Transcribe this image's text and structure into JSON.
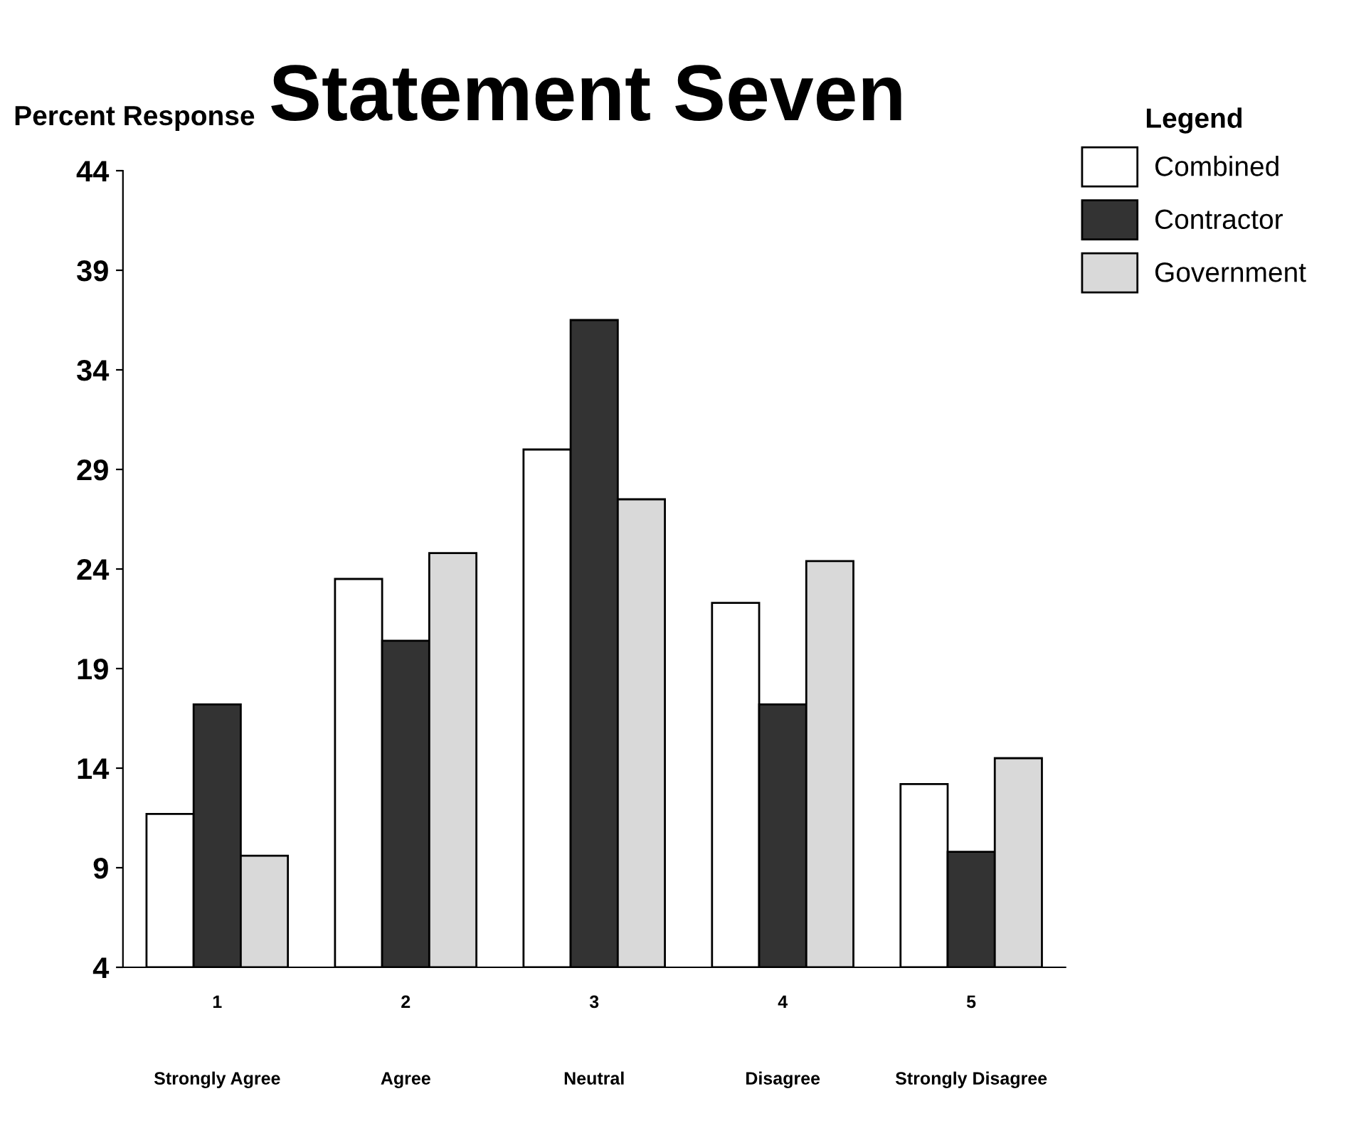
{
  "chart_data": {
    "type": "bar",
    "title": "Statement Seven",
    "ylabel": "Percent Response",
    "legend_title": "Legend",
    "categories": [
      "1\n\n\n\nStrongly Agree",
      "2\n\n\n\nAgree",
      "3\n\n\n\nNeutral",
      "4\n\n\n\nDisagree",
      "5\n\n\n\nStrongly Disagree"
    ],
    "series": [
      {
        "name": "Combined",
        "color": "#ffffff",
        "values": [
          11.7,
          23.5,
          30.0,
          22.3,
          13.2
        ]
      },
      {
        "name": "Contractor",
        "color": "#333333",
        "values": [
          17.2,
          20.4,
          36.5,
          17.2,
          9.8
        ]
      },
      {
        "name": "Government",
        "color": "#d9d9d9",
        "values": [
          9.6,
          24.8,
          27.5,
          24.4,
          14.5
        ]
      }
    ],
    "ylim": [
      4,
      44
    ],
    "yticks": [
      4,
      9,
      14,
      19,
      24,
      29,
      34,
      39,
      44
    ],
    "legend": "top right"
  }
}
